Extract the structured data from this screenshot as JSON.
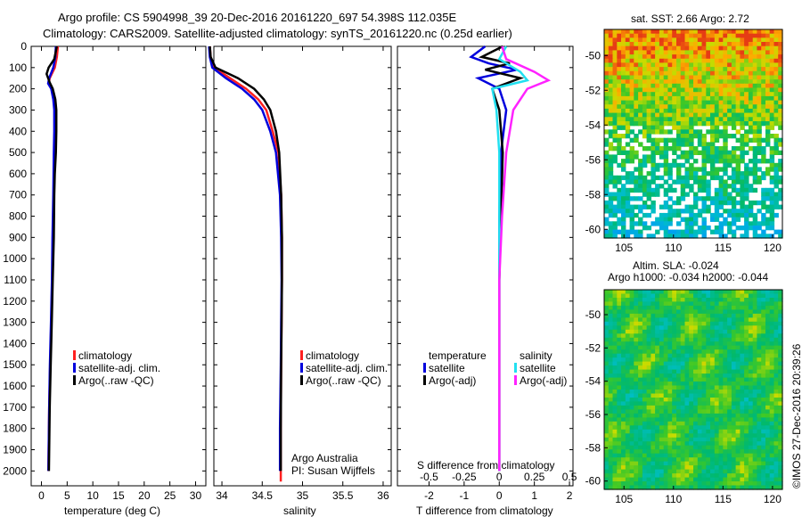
{
  "header": {
    "line1": "Argo profile: CS 5904998_39 20-Dec-2016 20161220_697 54.398S 112.035E",
    "line2": "Climatology: CARS2009. Satellite-adjusted climatology: synTS_20161220.nc (0.25d earlier)"
  },
  "colors": {
    "climatology": "#ff2020",
    "satellite": "#0000dd",
    "argo": "#000000",
    "satellite_s": "#22e0f0",
    "argo_s": "#ff22ff"
  },
  "chart_data": [
    {
      "type": "line",
      "xlabel": "temperature (deg C)",
      "xticks": [
        "0",
        "5",
        "10",
        "15",
        "20",
        "25",
        "30"
      ],
      "xlim": [
        -2,
        32
      ],
      "yticks": [
        "0",
        "100",
        "200",
        "300",
        "400",
        "500",
        "600",
        "700",
        "800",
        "900",
        "1000",
        "1100",
        "1200",
        "1300",
        "1400",
        "1500",
        "1600",
        "1700",
        "1800",
        "1900",
        "2000"
      ],
      "ylim": [
        0,
        2070
      ],
      "legend": [
        "climatology",
        "satellite-adj. clim.",
        "Argo(..raw -QC)"
      ],
      "series": [
        {
          "name": "climatology",
          "x": [
            3.2,
            3.0,
            2.6,
            1.6,
            1.4,
            2.0,
            2.4,
            2.6,
            2.6,
            2.5,
            2.4,
            2.2,
            2.1,
            1.9,
            1.7,
            1.5,
            1.4,
            1.35
          ],
          "y": [
            0,
            50,
            100,
            150,
            175,
            200,
            250,
            300,
            400,
            500,
            700,
            900,
            1100,
            1300,
            1500,
            1700,
            1900,
            2000
          ]
        },
        {
          "name": "satellite-adj. clim.",
          "x": [
            2.8,
            2.7,
            2.3,
            1.5,
            1.3,
            1.9,
            2.3,
            2.5,
            2.5,
            2.4,
            2.3,
            2.15,
            2.05,
            1.85,
            1.65,
            1.5,
            1.4,
            1.35
          ],
          "y": [
            0,
            50,
            100,
            150,
            175,
            200,
            250,
            300,
            400,
            500,
            700,
            900,
            1100,
            1300,
            1500,
            1700,
            1900,
            2000
          ]
        },
        {
          "name": "Argo(..raw -QC)",
          "x": [
            3.0,
            2.5,
            1.4,
            1.0,
            1.6,
            2.2,
            2.7,
            2.9,
            2.9,
            2.8,
            2.6,
            2.5,
            2.4,
            2.2,
            2.0,
            1.8,
            1.6,
            1.5,
            1.45
          ],
          "y": [
            0,
            60,
            100,
            130,
            170,
            200,
            250,
            300,
            400,
            500,
            600,
            700,
            900,
            1100,
            1300,
            1500,
            1700,
            1900,
            2000
          ]
        }
      ]
    },
    {
      "type": "line",
      "xlabel": "salinity",
      "xticks": [
        "34",
        "34.5",
        "35",
        "35.5",
        "36"
      ],
      "xlim": [
        33.9,
        36.1
      ],
      "yticks": [],
      "legend": [
        "climatology",
        "satellite-adj. clim.",
        "Argo(..raw -QC)"
      ],
      "annotation": [
        "Argo Australia",
        "PI: Susan Wijffels"
      ],
      "series": [
        {
          "name": "climatology",
          "x": [
            33.85,
            33.86,
            33.9,
            34.1,
            34.3,
            34.45,
            34.55,
            34.63,
            34.7,
            34.735,
            34.745,
            34.745,
            34.74,
            34.735,
            34.73,
            34.73
          ],
          "y": [
            0,
            50,
            100,
            150,
            200,
            250,
            300,
            400,
            500,
            700,
            900,
            1100,
            1300,
            1500,
            1800,
            2050
          ]
        },
        {
          "name": "satellite-adj. clim.",
          "x": [
            33.84,
            33.85,
            33.88,
            34.05,
            34.25,
            34.4,
            34.5,
            34.6,
            34.67,
            34.72,
            34.735,
            34.74,
            34.735,
            34.73,
            34.72,
            34.72
          ],
          "y": [
            0,
            50,
            100,
            150,
            200,
            250,
            300,
            400,
            500,
            700,
            900,
            1100,
            1300,
            1500,
            1800,
            2000
          ]
        },
        {
          "name": "Argo(..raw -QC)",
          "x": [
            33.85,
            33.86,
            33.92,
            34.2,
            34.4,
            34.52,
            34.6,
            34.67,
            34.71,
            34.735,
            34.745,
            34.745,
            34.74,
            34.735,
            34.73,
            34.73
          ],
          "y": [
            0,
            50,
            100,
            150,
            200,
            250,
            300,
            400,
            500,
            700,
            900,
            1100,
            1300,
            1500,
            1800,
            2000
          ]
        }
      ]
    },
    {
      "type": "line",
      "xlabel": "T difference from climatology",
      "xlabel2": "S difference from climatology",
      "xticks": [
        "-2",
        "-1",
        "0",
        "1",
        "2"
      ],
      "xlim": [
        -2.9,
        2.1
      ],
      "xticks2": [
        "-0.5",
        "-0.25",
        "0",
        "0.25",
        "0.5"
      ],
      "xlim2": [
        -0.725,
        0.525
      ],
      "yticks": [],
      "legend_title_t": "temperature",
      "legend_title_s": "salinity",
      "legend_t": [
        "satellite",
        "Argo(-adj)"
      ],
      "legend_s": [
        "satellite",
        "Argo(-adj)"
      ],
      "series": [
        {
          "name": "satellite",
          "x": [
            -0.4,
            -0.8,
            -0.3,
            0.5,
            -0.6,
            0.0,
            0.2,
            0.05,
            0.0,
            0.0,
            0.0,
            0.0,
            0.0
          ],
          "y": [
            0,
            50,
            80,
            110,
            150,
            200,
            300,
            500,
            800,
            1100,
            1400,
            1700,
            2000
          ]
        },
        {
          "name": "Argo(-adj)",
          "x": [
            0.1,
            -0.5,
            0.3,
            -0.4,
            0.6,
            -0.2,
            0.0,
            0.1,
            0.05,
            0.0,
            0.0,
            0.0,
            0.0
          ],
          "y": [
            0,
            50,
            80,
            110,
            150,
            200,
            300,
            500,
            800,
            1100,
            1400,
            1700,
            2000
          ]
        },
        {
          "name": "satellite",
          "x": [
            0.05,
            0.0,
            0.15,
            0.2,
            -0.05,
            -0.02,
            0.0,
            0.0,
            0.0,
            0.0,
            0.0
          ],
          "y": [
            0,
            60,
            120,
            160,
            200,
            300,
            500,
            800,
            1100,
            1500,
            2000
          ]
        },
        {
          "name": "Argo(-adj)",
          "x": [
            0.02,
            0.05,
            0.25,
            0.35,
            0.2,
            0.1,
            0.05,
            0.02,
            0.0,
            0.0,
            0.0
          ],
          "y": [
            0,
            60,
            120,
            160,
            200,
            300,
            500,
            800,
            1100,
            1500,
            2000
          ]
        }
      ]
    },
    {
      "type": "heatmap",
      "title": "sat. SST: 2.66 Argo: 2.72",
      "xticks": [
        "105",
        "110",
        "115",
        "120"
      ],
      "yticks": [
        "-50",
        "-52",
        "-54",
        "-56",
        "-58",
        "-60"
      ],
      "xlim": [
        103,
        121
      ],
      "ylim": [
        -60.5,
        -48.5
      ]
    },
    {
      "type": "heatmap",
      "title_line1": "Altim. SLA: -0.024",
      "title_line2": "Argo h1000: -0.034 h2000: -0.044",
      "xticks": [
        "105",
        "110",
        "115",
        "120"
      ],
      "yticks": [
        "-50",
        "-52",
        "-54",
        "-56",
        "-58",
        "-60"
      ],
      "xlim": [
        103,
        121
      ],
      "ylim": [
        -60.5,
        -48.5
      ]
    }
  ],
  "footer": {
    "credit": "©IMOS 27-Dec-2016 20:39:26"
  }
}
